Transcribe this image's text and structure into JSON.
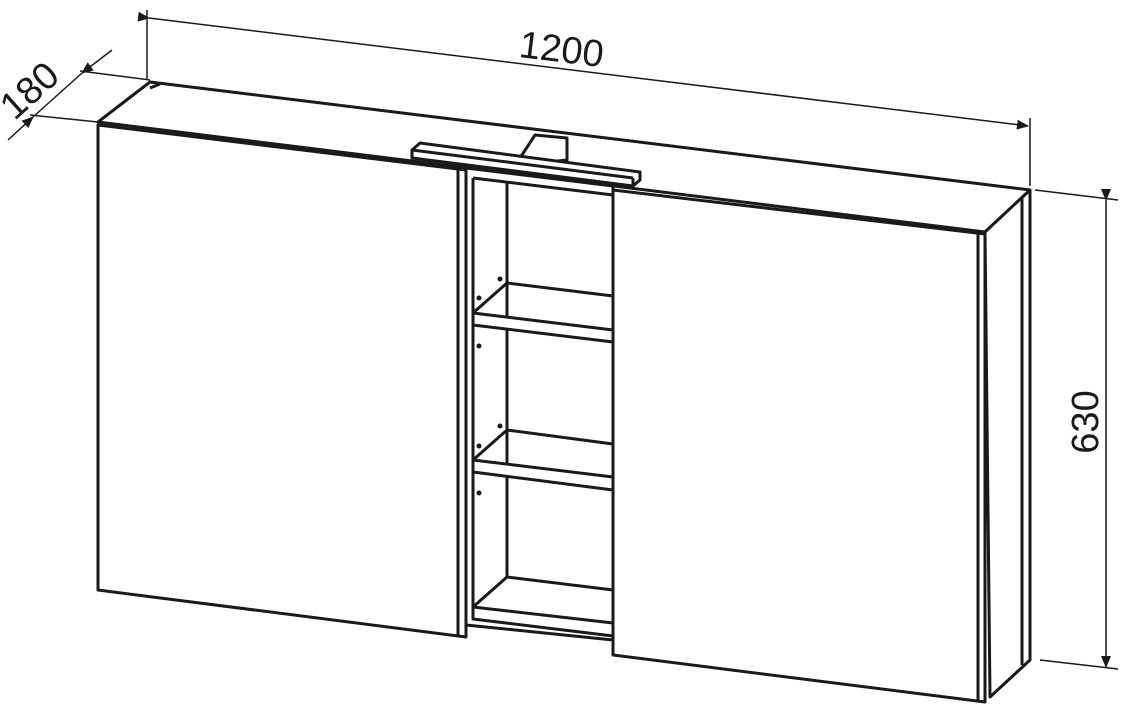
{
  "dimensions": {
    "width": "1200",
    "depth": "180",
    "height": "630"
  },
  "colors": {
    "line": "#1a1a1a",
    "background": "#ffffff"
  }
}
